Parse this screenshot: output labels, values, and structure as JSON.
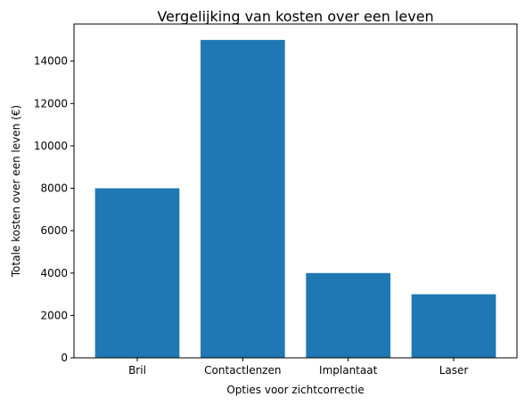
{
  "chart_data": {
    "type": "bar",
    "title": "Vergelijking van kosten over een leven",
    "xlabel": "Opties voor zichtcorrectie",
    "ylabel": "Totale kosten over een leven (€)",
    "categories": [
      "Bril",
      "Contactlenzen",
      "Implantaat",
      "Laser"
    ],
    "values": [
      8000,
      15000,
      4000,
      3000
    ],
    "ylim": [
      0,
      15750
    ],
    "yticks": [
      0,
      2000,
      4000,
      6000,
      8000,
      10000,
      12000,
      14000
    ],
    "bar_color": "#1f77b4",
    "grid": false,
    "legend": "none"
  }
}
